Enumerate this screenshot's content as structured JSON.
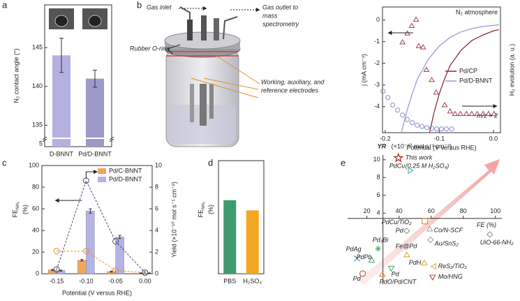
{
  "panel_labels": [
    "a",
    "b",
    "c",
    "d",
    "e"
  ],
  "diagram": {
    "gas_inlet": "Gas inlet",
    "gas_outlet": [
      "Gas outlet to",
      "mass",
      "spectrometry"
    ],
    "o_ring": "Rubber O-ring",
    "electrodes": [
      "Working, auxiliary, and",
      "reference electrodes"
    ]
  },
  "chart_data": [
    {
      "type": "bar",
      "ylabel": "N₂ contact angle (°)",
      "categories": [
        "D-BNNT",
        "Pd/D-BNNT"
      ],
      "values": [
        144,
        141
      ],
      "errors": [
        2.2,
        1.1
      ],
      "colors": [
        "#b4b0e0",
        "#9d99c9"
      ],
      "ylim": [
        133.5,
        150.5
      ],
      "yticks": [
        135,
        140,
        145
      ],
      "break_label": 5
    },
    {
      "type": "line",
      "xlabel": "Potential (V versus RHE)",
      "ylabel": "j (mA cm⁻²)",
      "y2label": "H₂ evolution (a. u.)",
      "annotations": [
        "N₂ atmosphere",
        "m/z = 2"
      ],
      "xlim": [
        -0.205,
        0.013
      ],
      "xticks": [
        -0.2,
        -0.1,
        {
          "value": 0,
          "label": "0.0"
        }
      ],
      "ylim": [
        -5.2,
        0.6
      ],
      "yticks": [
        -4,
        -3,
        -2,
        -1,
        0
      ],
      "y2lim": [
        0,
        10
      ],
      "series": [
        {
          "name": "Pd/CP",
          "color": "#8b2c3a",
          "x": [
            -0.118,
            -0.11,
            -0.1,
            -0.09,
            -0.08,
            -0.06,
            -0.04,
            -0.02,
            0,
            0.01
          ],
          "values": [
            -5.2,
            -4.3,
            -3.4,
            -2.7,
            -2.1,
            -1.4,
            -0.95,
            -0.7,
            -0.5,
            -0.45
          ]
        },
        {
          "name": "Pd/D-BNNT",
          "color": "#9a9ad8",
          "x": [
            -0.17,
            -0.16,
            -0.15,
            -0.14,
            -0.12,
            -0.1,
            -0.08,
            -0.06,
            -0.04,
            -0.02,
            0,
            0.01
          ],
          "values": [
            -5.2,
            -4.2,
            -3.4,
            -2.7,
            -1.8,
            -1.2,
            -0.8,
            -0.55,
            -0.4,
            -0.3,
            -0.25,
            -0.22
          ]
        },
        {
          "color": "#a04050",
          "marker": "triangle",
          "axis": "y2",
          "x": [
            -0.168,
            -0.159,
            -0.151,
            -0.143,
            -0.138,
            -0.13,
            -0.124,
            -0.114,
            -0.106,
            -0.09,
            -0.08,
            -0.071,
            -0.061,
            -0.05,
            -0.04,
            -0.03,
            -0.019,
            -0.009,
            0.001
          ],
          "values": [
            7.2,
            7.9,
            8.5,
            9.0,
            6.9,
            6.8,
            5.0,
            4.2,
            3.2,
            2.2,
            1.7,
            1.5,
            1.5,
            1.5,
            1.5,
            1.5,
            1.5,
            1.5,
            1.5
          ]
        },
        {
          "color": "#8a8ad0",
          "marker": "circle",
          "axis": "y2",
          "x": [
            -0.204,
            -0.195,
            -0.186,
            -0.177,
            -0.168,
            -0.159,
            -0.15,
            -0.141,
            -0.132,
            -0.123,
            -0.114,
            -0.105,
            -0.096,
            -0.087,
            -0.077
          ],
          "values": [
            3.3,
            2.8,
            2.2,
            1.8,
            1.4,
            1.05,
            0.8,
            0.6,
            0.5,
            0.4,
            0.35,
            0.3,
            0.3,
            0.3,
            0.3
          ]
        }
      ]
    },
    {
      "type": "combo",
      "xlabel": "Potential (V versus RHE)",
      "ylabel": "FE",
      "ylabel_sub": "NH₃",
      "ylabel_unit": "(%)",
      "y2label": "Yield (×10⁻¹⁰ mol s⁻¹ cm⁻²)",
      "x": [
        -0.15,
        -0.1,
        -0.05,
        0
      ],
      "xlim": [
        -0.175,
        0.012
      ],
      "xticks": [
        {
          "value": -0.15,
          "label": "-0.15"
        },
        {
          "value": -0.1,
          "label": "-0.10"
        },
        {
          "value": -0.05,
          "label": "-0.05"
        },
        {
          "value": 0,
          "label": "0.00"
        }
      ],
      "ylim": [
        0,
        100
      ],
      "yticks": [
        0,
        20,
        40,
        60,
        80,
        100
      ],
      "y2lim": [
        0,
        10
      ],
      "y2ticks": [
        0,
        2,
        4,
        6,
        8,
        10
      ],
      "series": [
        {
          "name": "Pd/C-BNNT",
          "kind": "bar",
          "color": "#f5a55a",
          "values": [
            3.5,
            12.5,
            2,
            0.5
          ],
          "errors": [
            0.5,
            0.8,
            0.5,
            0.3
          ]
        },
        {
          "name": "Pd/D-BNNT",
          "kind": "bar",
          "color": "#b3b3e6",
          "values": [
            3,
            58,
            34,
            0.5
          ],
          "errors": [
            0.5,
            2,
            1.5,
            0.3
          ]
        },
        {
          "kind": "line",
          "axis": "y2",
          "color": "#e8903a",
          "values": [
            2.1,
            2.1,
            0.3,
            0.1
          ]
        },
        {
          "kind": "line",
          "axis": "y2",
          "color": "#4a4a7a",
          "values": [
            0.4,
            8.6,
            3,
            0.1
          ]
        }
      ]
    },
    {
      "type": "bar",
      "ylabel": "FE",
      "ylabel_sub": "NH₃",
      "ylabel_unit": "(%)",
      "categories": [
        "PBS",
        "H₂SO₄"
      ],
      "values": [
        65,
        56
      ],
      "colors": [
        "#3d9b6e",
        "#f5a623"
      ],
      "ylim": [
        0,
        100
      ]
    },
    {
      "type": "scatter",
      "xlabel": "FE (%)",
      "ylabel": "YR",
      "ylabel_unit": "(×10⁻¹⁰ mol s⁻¹ cm⁻²)",
      "xlim": [
        8,
        104
      ],
      "ylim": [
        -4,
        11
      ],
      "xticks": [
        20,
        40,
        60,
        80,
        100
      ],
      "yticks": [
        4,
        6,
        8,
        10
      ],
      "axes_cross": [
        30,
        3.4
      ],
      "annotation": "(0.25 M H₂SO₄)",
      "labels": [
        "This work",
        "PdCu",
        "PdCu/TiO₂",
        "Pd",
        "Co/N-SCF",
        "UiO-66-NH₂",
        "Au/SnS₂",
        "Pd₃Bi",
        "Fe@Pd",
        "PdH",
        "ReS₂/TiO₂",
        "Mo/HNG",
        "PdAg",
        "PdPb",
        "Pd",
        "PdO/Pd/CNT",
        "Pd"
      ],
      "x": [
        39.6,
        47,
        56.1,
        44.8,
        59.1,
        96.5,
        59.6,
        27,
        44.8,
        55.7,
        61.7,
        60.9,
        13.9,
        23,
        35.2,
        29.6,
        17.4
      ],
      "values": [
        10.2,
        8.8,
        3.1,
        2.0,
        2.2,
        1.6,
        1.0,
        0,
        -0.7,
        -1.6,
        -2.0,
        -3.2,
        -1.1,
        -1.3,
        -2.2,
        -2.9,
        -2.8
      ],
      "colors": [
        "#b03020",
        "#3aa8a0",
        "#e08030",
        "#888888",
        "#999999",
        "#888888",
        "#999999",
        "#3aa860",
        "#e0a030",
        "#e0a030",
        "#e0a030",
        "#c04020",
        "#3a8890",
        "#3aa860",
        "#3aa860",
        "#e08030",
        "#c04020"
      ],
      "markers": [
        "star",
        "triangle-right",
        "square",
        "diamond",
        "triangle",
        "diamond",
        "diamond",
        "asterisk",
        "triangle",
        "triangle",
        "triangle-left",
        "triangle-down",
        "x",
        "triangle",
        "triangle-down",
        "triangle",
        "circle"
      ]
    }
  ]
}
